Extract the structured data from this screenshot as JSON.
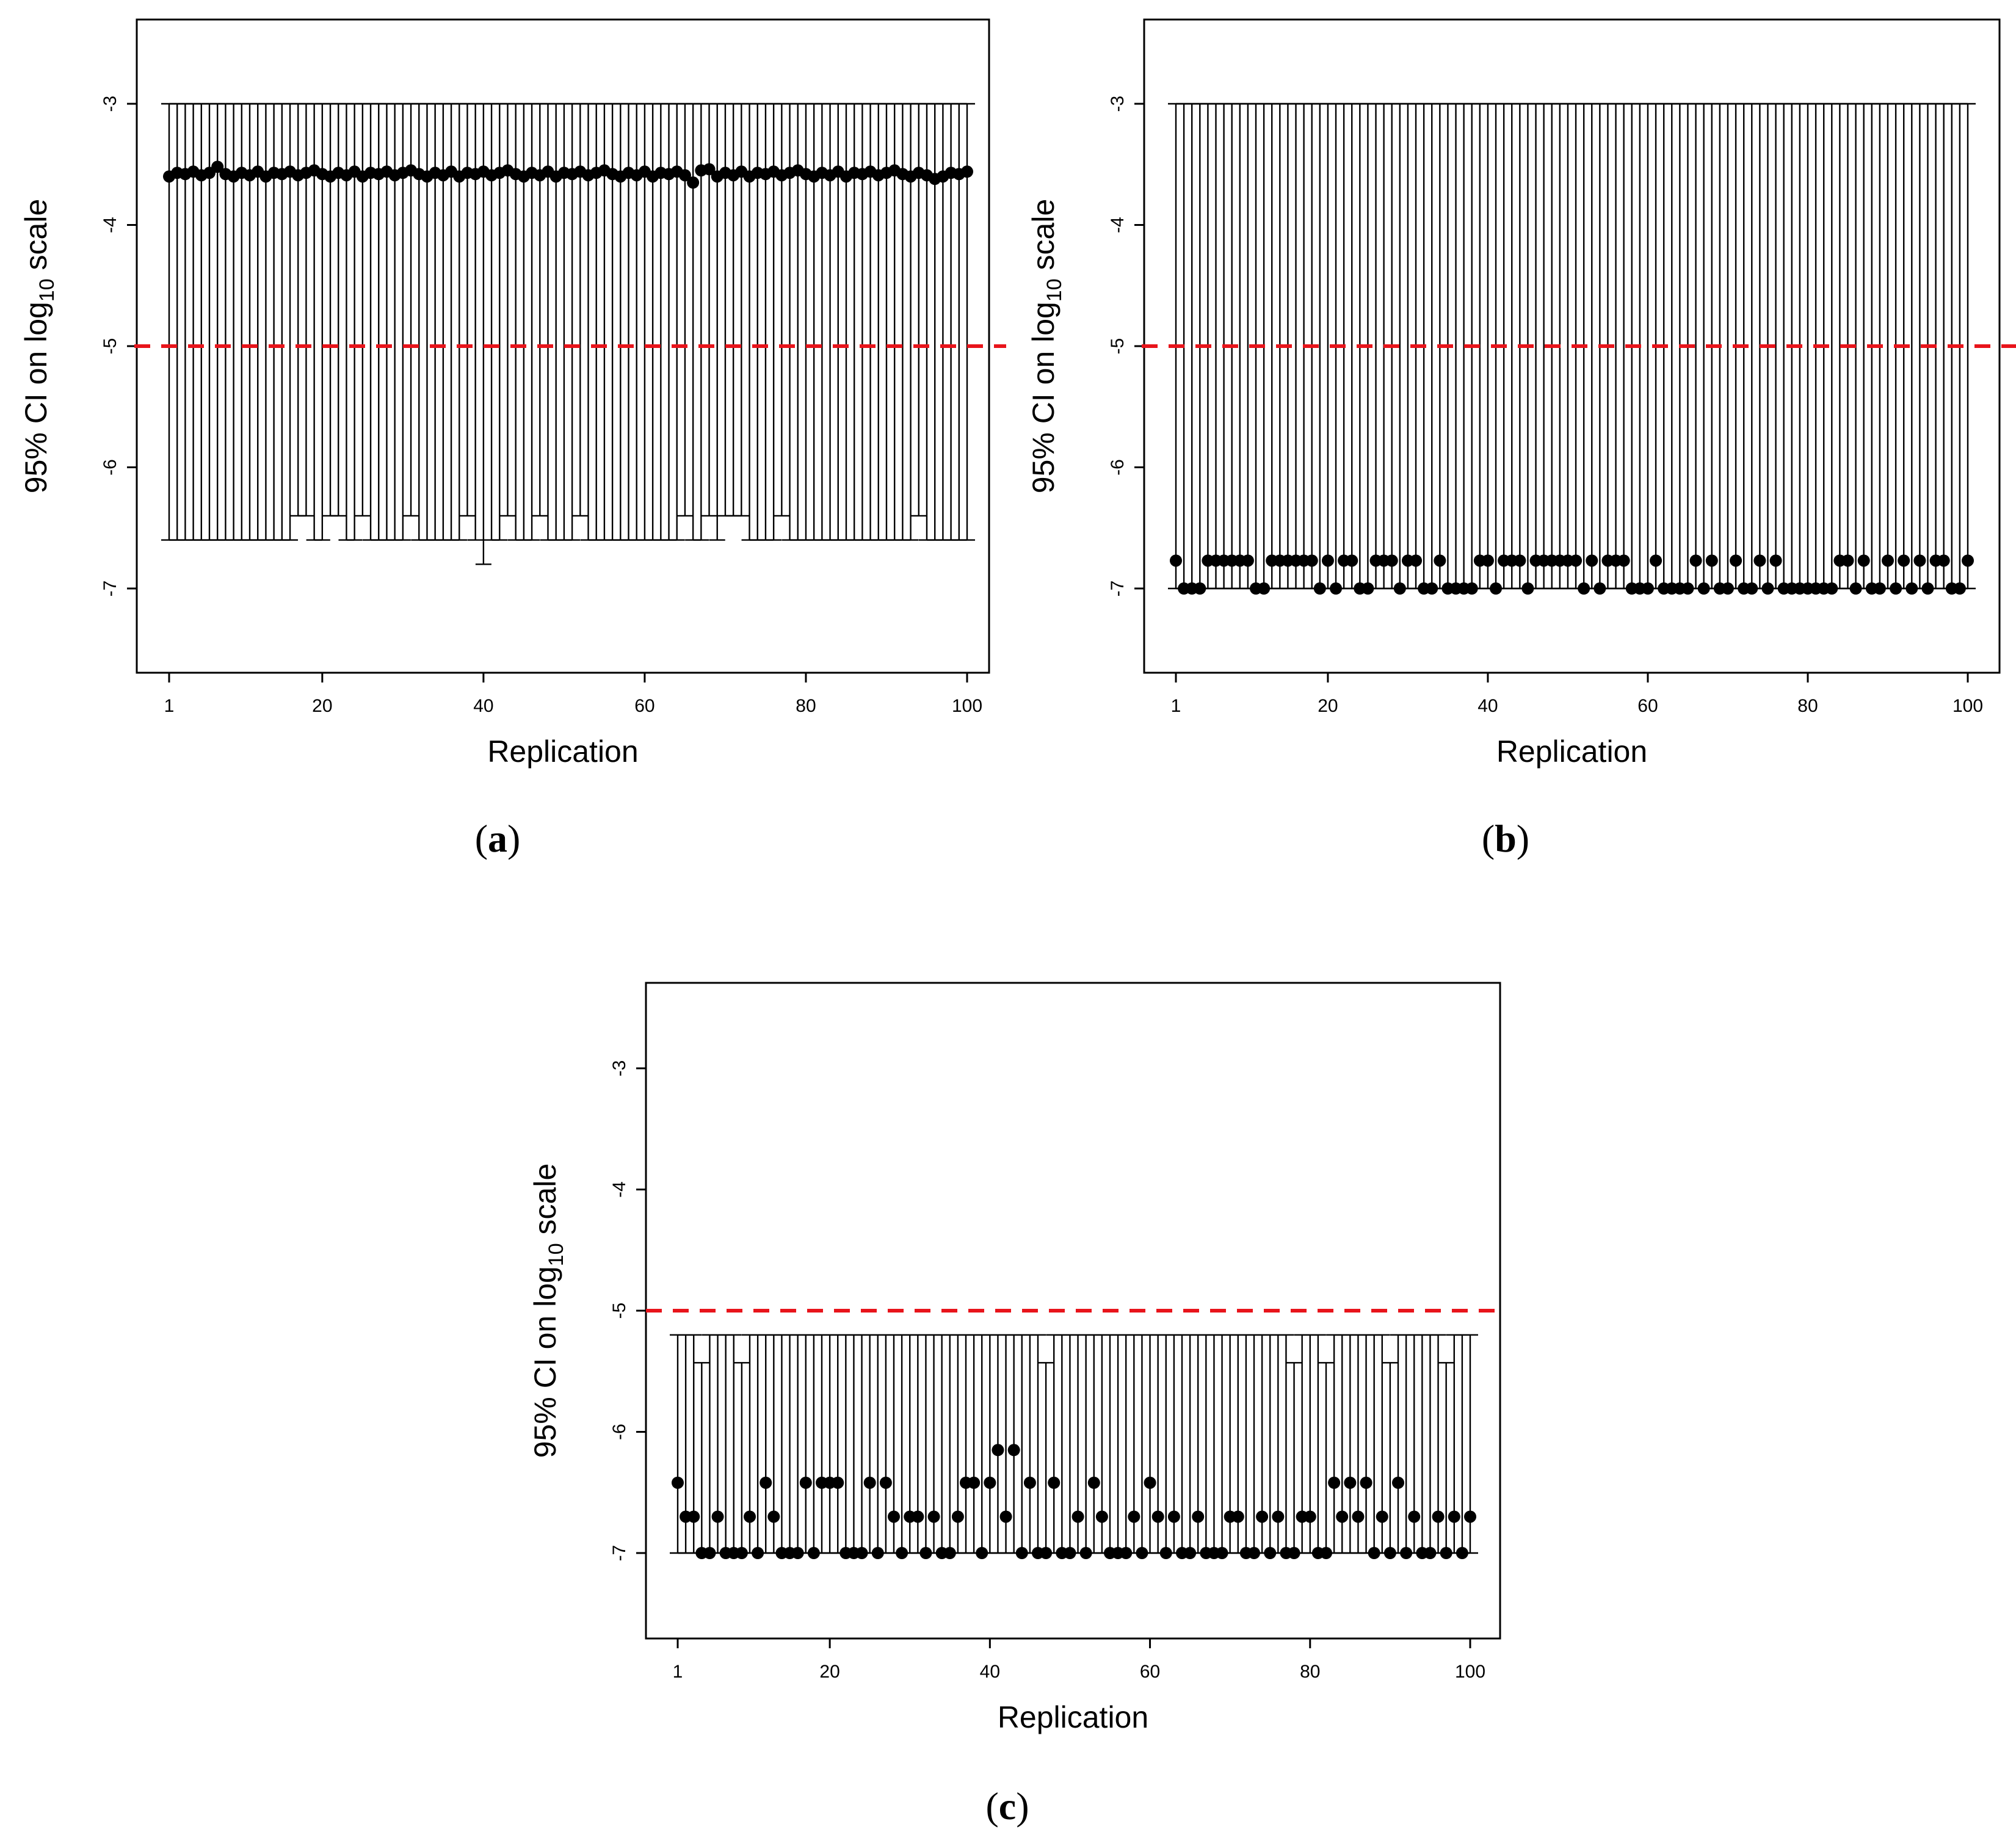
{
  "chart_data": [
    {
      "type": "scatter",
      "panel": "a",
      "caption": "a",
      "xlabel": "Replication",
      "ylabel": "95% CI on log",
      "ylabel_sub": "10",
      "ylabel_suffix": " scale",
      "xlim": [
        1,
        100
      ],
      "ylim": [
        -7.7,
        -2.4
      ],
      "xticks": [
        "1",
        "20",
        "40",
        "60",
        "80",
        "100"
      ],
      "yticks": [
        "-3",
        "-4",
        "-5",
        "-6",
        "-7"
      ],
      "reference_line": {
        "y": -5,
        "color": "#e8141b",
        "style": "dashed"
      },
      "ci_upper": -3,
      "ci_lower_default": -6.6,
      "ci_lower_exceptions": [
        {
          "x": 17,
          "lower": -6.4
        },
        {
          "x": 18,
          "lower": -6.4
        },
        {
          "x": 21,
          "lower": -6.4
        },
        {
          "x": 22,
          "lower": -6.4
        },
        {
          "x": 25,
          "lower": -6.4
        },
        {
          "x": 31,
          "lower": -6.4
        },
        {
          "x": 38,
          "lower": -6.4
        },
        {
          "x": 40,
          "lower": -6.8
        },
        {
          "x": 43,
          "lower": -6.4
        },
        {
          "x": 47,
          "lower": -6.4
        },
        {
          "x": 52,
          "lower": -6.4
        },
        {
          "x": 65,
          "lower": -6.4
        },
        {
          "x": 68,
          "lower": -6.4
        },
        {
          "x": 70,
          "lower": -6.4
        },
        {
          "x": 71,
          "lower": -6.4
        },
        {
          "x": 72,
          "lower": -6.4
        },
        {
          "x": 77,
          "lower": -6.4
        },
        {
          "x": 94,
          "lower": -6.4
        }
      ],
      "point_pattern": [
        -3.6,
        -3.57,
        -3.58,
        -3.56,
        -3.59,
        -3.57,
        -3.55,
        -3.58,
        -3.6,
        -3.57,
        -3.59,
        -3.56
      ],
      "point_overrides": [
        {
          "x": 7,
          "y": -3.52
        },
        {
          "x": 66,
          "y": -3.65
        },
        {
          "x": 68,
          "y": -3.54
        },
        {
          "x": 96,
          "y": -3.62
        }
      ]
    },
    {
      "type": "scatter",
      "panel": "b",
      "caption": "b",
      "xlabel": "Replication",
      "ylabel": "95% CI on log",
      "ylabel_sub": "10",
      "ylabel_suffix": " scale",
      "xlim": [
        1,
        100
      ],
      "ylim": [
        -7.7,
        -2.4
      ],
      "xticks": [
        "1",
        "20",
        "40",
        "60",
        "80",
        "100"
      ],
      "yticks": [
        "-3",
        "-4",
        "-5",
        "-6",
        "-7"
      ],
      "reference_line": {
        "y": -5,
        "color": "#e8141b",
        "style": "dashed"
      },
      "ci_upper": -3,
      "ci_lower_default": -7,
      "points_low_value": -7,
      "points_high_value": -6.77,
      "points_low_x": [
        2,
        3,
        4,
        11,
        12,
        19,
        21,
        24,
        25,
        29,
        32,
        33,
        35,
        36,
        37,
        38,
        41,
        45,
        52,
        54,
        58,
        59,
        60,
        62,
        63,
        64,
        65,
        67,
        69,
        70,
        72,
        73,
        75,
        77,
        78,
        79,
        80,
        81,
        82,
        83,
        86,
        88,
        89,
        91,
        93,
        95,
        98,
        99
      ]
    },
    {
      "type": "scatter",
      "panel": "c",
      "caption": "c",
      "xlabel": "Replication",
      "ylabel": "95% CI on log",
      "ylabel_sub": "10",
      "ylabel_suffix": " scale",
      "xlim": [
        1,
        100
      ],
      "ylim": [
        -7.7,
        -2.4
      ],
      "xticks": [
        "1",
        "20",
        "40",
        "60",
        "80",
        "100"
      ],
      "yticks": [
        "-3",
        "-4",
        "-5",
        "-6",
        "-7"
      ],
      "reference_line": {
        "y": -5,
        "color": "#e8141b",
        "style": "dashed"
      },
      "ci_upper_default": -5.2,
      "ci_upper_exceptions": [
        {
          "x": 4,
          "upper": -5.43
        },
        {
          "x": 9,
          "upper": -5.43
        },
        {
          "x": 47,
          "upper": -5.43
        },
        {
          "x": 78,
          "upper": -5.43
        },
        {
          "x": 82,
          "upper": -5.43
        },
        {
          "x": 90,
          "upper": -5.43
        },
        {
          "x": 97,
          "upper": -5.43
        }
      ],
      "ci_lower": -7,
      "points": [
        {
          "x": 1,
          "y": -6.42
        },
        {
          "x": 2,
          "y": -6.7
        },
        {
          "x": 3,
          "y": -6.7
        },
        {
          "x": 4,
          "y": -7
        },
        {
          "x": 5,
          "y": -7
        },
        {
          "x": 6,
          "y": -6.7
        },
        {
          "x": 7,
          "y": -7
        },
        {
          "x": 8,
          "y": -7
        },
        {
          "x": 9,
          "y": -7
        },
        {
          "x": 10,
          "y": -6.7
        },
        {
          "x": 11,
          "y": -7
        },
        {
          "x": 12,
          "y": -6.42
        },
        {
          "x": 13,
          "y": -6.7
        },
        {
          "x": 14,
          "y": -7
        },
        {
          "x": 15,
          "y": -7
        },
        {
          "x": 16,
          "y": -7
        },
        {
          "x": 17,
          "y": -6.42
        },
        {
          "x": 18,
          "y": -7
        },
        {
          "x": 19,
          "y": -6.42
        },
        {
          "x": 20,
          "y": -6.42
        },
        {
          "x": 21,
          "y": -6.42
        },
        {
          "x": 22,
          "y": -7
        },
        {
          "x": 23,
          "y": -7
        },
        {
          "x": 24,
          "y": -7
        },
        {
          "x": 25,
          "y": -6.42
        },
        {
          "x": 26,
          "y": -7
        },
        {
          "x": 27,
          "y": -6.42
        },
        {
          "x": 28,
          "y": -6.7
        },
        {
          "x": 29,
          "y": -7
        },
        {
          "x": 30,
          "y": -6.7
        },
        {
          "x": 31,
          "y": -6.7
        },
        {
          "x": 32,
          "y": -7
        },
        {
          "x": 33,
          "y": -6.7
        },
        {
          "x": 34,
          "y": -7
        },
        {
          "x": 35,
          "y": -7
        },
        {
          "x": 36,
          "y": -6.7
        },
        {
          "x": 37,
          "y": -6.42
        },
        {
          "x": 38,
          "y": -6.42
        },
        {
          "x": 39,
          "y": -7
        },
        {
          "x": 40,
          "y": -6.42
        },
        {
          "x": 41,
          "y": -6.15
        },
        {
          "x": 42,
          "y": -6.7
        },
        {
          "x": 43,
          "y": -6.15
        },
        {
          "x": 44,
          "y": -7
        },
        {
          "x": 45,
          "y": -6.42
        },
        {
          "x": 46,
          "y": -7
        },
        {
          "x": 47,
          "y": -7
        },
        {
          "x": 48,
          "y": -6.42
        },
        {
          "x": 49,
          "y": -7
        },
        {
          "x": 50,
          "y": -7
        },
        {
          "x": 51,
          "y": -6.7
        },
        {
          "x": 52,
          "y": -7
        },
        {
          "x": 53,
          "y": -6.42
        },
        {
          "x": 54,
          "y": -6.7
        },
        {
          "x": 55,
          "y": -7
        },
        {
          "x": 56,
          "y": -7
        },
        {
          "x": 57,
          "y": -7
        },
        {
          "x": 58,
          "y": -6.7
        },
        {
          "x": 59,
          "y": -7
        },
        {
          "x": 60,
          "y": -6.42
        },
        {
          "x": 61,
          "y": -6.7
        },
        {
          "x": 62,
          "y": -7
        },
        {
          "x": 63,
          "y": -6.7
        },
        {
          "x": 64,
          "y": -7
        },
        {
          "x": 65,
          "y": -7
        },
        {
          "x": 66,
          "y": -6.7
        },
        {
          "x": 67,
          "y": -7
        },
        {
          "x": 68,
          "y": -7
        },
        {
          "x": 69,
          "y": -7
        },
        {
          "x": 70,
          "y": -6.7
        },
        {
          "x": 71,
          "y": -6.7
        },
        {
          "x": 72,
          "y": -7
        },
        {
          "x": 73,
          "y": -7
        },
        {
          "x": 74,
          "y": -6.7
        },
        {
          "x": 75,
          "y": -7
        },
        {
          "x": 76,
          "y": -6.7
        },
        {
          "x": 77,
          "y": -7
        },
        {
          "x": 78,
          "y": -7
        },
        {
          "x": 79,
          "y": -6.7
        },
        {
          "x": 80,
          "y": -6.7
        },
        {
          "x": 81,
          "y": -7
        },
        {
          "x": 82,
          "y": -7
        },
        {
          "x": 83,
          "y": -6.42
        },
        {
          "x": 84,
          "y": -6.7
        },
        {
          "x": 85,
          "y": -6.42
        },
        {
          "x": 86,
          "y": -6.7
        },
        {
          "x": 87,
          "y": -6.42
        },
        {
          "x": 88,
          "y": -7
        },
        {
          "x": 89,
          "y": -6.7
        },
        {
          "x": 90,
          "y": -7
        },
        {
          "x": 91,
          "y": -6.42
        },
        {
          "x": 92,
          "y": -7
        },
        {
          "x": 93,
          "y": -6.7
        },
        {
          "x": 94,
          "y": -7
        },
        {
          "x": 95,
          "y": -7
        },
        {
          "x": 96,
          "y": -6.7
        },
        {
          "x": 97,
          "y": -7
        },
        {
          "x": 98,
          "y": -6.7
        },
        {
          "x": 99,
          "y": -7
        },
        {
          "x": 100,
          "y": -6.7
        }
      ]
    }
  ]
}
